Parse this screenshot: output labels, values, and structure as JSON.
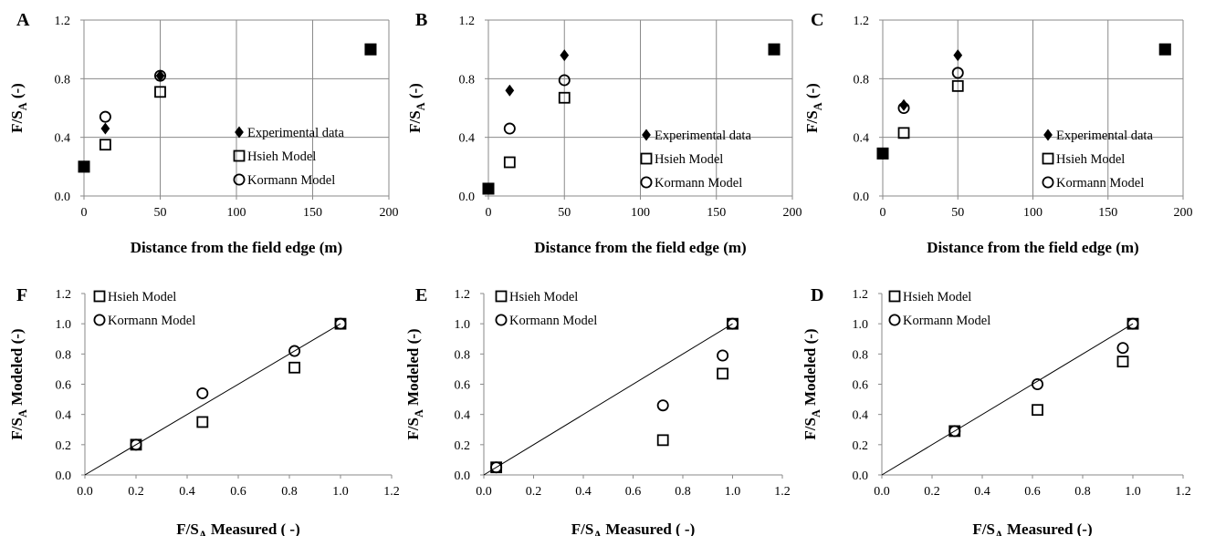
{
  "chart_data": [
    {
      "panel": "A",
      "type": "scatter",
      "xlabel": "Distance from the field edge (m)",
      "ylabel": "F/S_A (-)",
      "xlim": [
        0,
        200
      ],
      "ylim": [
        0,
        1.2
      ],
      "xticks": [
        "0",
        "50",
        "100",
        "150",
        "200"
      ],
      "yticks": [
        "0.0",
        "0.4",
        "0.8",
        "1.2"
      ],
      "grid": "on",
      "legend_position": "bottom-right",
      "series": [
        {
          "name": "Experimental data",
          "marker": "diamond",
          "x": [
            0,
            14,
            50,
            188
          ],
          "y": [
            0.2,
            0.46,
            0.82,
            1.0
          ]
        },
        {
          "name": "Hsieh Model",
          "marker": "square",
          "x": [
            0,
            14,
            50,
            188
          ],
          "y": [
            0.2,
            0.35,
            0.71,
            1.0
          ]
        },
        {
          "name": "Kormann Model",
          "marker": "circle",
          "x": [
            0,
            14,
            50,
            188
          ],
          "y": [
            0.2,
            0.54,
            0.82,
            1.0
          ]
        }
      ]
    },
    {
      "panel": "B",
      "type": "scatter",
      "xlabel": "Distance from the field edge (m)",
      "ylabel": "F/S_A (-)",
      "xlim": [
        0,
        200
      ],
      "ylim": [
        0,
        1.2
      ],
      "xticks": [
        "0",
        "50",
        "100",
        "150",
        "200"
      ],
      "yticks": [
        "0.0",
        "0.4",
        "0.8",
        "1.2"
      ],
      "grid": "on",
      "legend_position": "bottom-right",
      "series": [
        {
          "name": "Experimental data",
          "marker": "diamond",
          "x": [
            0,
            14,
            50,
            188
          ],
          "y": [
            0.05,
            0.72,
            0.96,
            1.0
          ]
        },
        {
          "name": "Hsieh Model",
          "marker": "square",
          "x": [
            0,
            14,
            50,
            188
          ],
          "y": [
            0.05,
            0.23,
            0.67,
            1.0
          ]
        },
        {
          "name": "Kormann Model",
          "marker": "circle",
          "x": [
            0,
            14,
            50,
            188
          ],
          "y": [
            0.05,
            0.46,
            0.79,
            1.0
          ]
        }
      ]
    },
    {
      "panel": "C",
      "type": "scatter",
      "xlabel": "Distance from the field edge (m)",
      "ylabel": "F/S_A (-)",
      "xlim": [
        0,
        200
      ],
      "ylim": [
        0,
        1.2
      ],
      "xticks": [
        "0",
        "50",
        "100",
        "150",
        "200"
      ],
      "yticks": [
        "0.0",
        "0.4",
        "0.8",
        "1.2"
      ],
      "grid": "on",
      "legend_position": "bottom-right",
      "series": [
        {
          "name": "Experimental data",
          "marker": "diamond",
          "x": [
            0,
            14,
            50,
            188
          ],
          "y": [
            0.29,
            0.62,
            0.96,
            1.0
          ]
        },
        {
          "name": "Hsieh Model",
          "marker": "square",
          "x": [
            0,
            14,
            50,
            188
          ],
          "y": [
            0.29,
            0.43,
            0.75,
            1.0
          ]
        },
        {
          "name": "Kormann Model",
          "marker": "circle",
          "x": [
            0,
            14,
            50,
            188
          ],
          "y": [
            0.29,
            0.6,
            0.84,
            1.0
          ]
        }
      ]
    },
    {
      "panel": "F",
      "type": "scatter",
      "xlabel": "F/S_A Measured ( -)",
      "ylabel": "F/S_A Modeled (-)",
      "xlim": [
        0,
        1.2
      ],
      "ylim": [
        0,
        1.2
      ],
      "xticks": [
        "0.0",
        "0.2",
        "0.4",
        "0.6",
        "0.8",
        "1.0",
        "1.2"
      ],
      "yticks": [
        "0.0",
        "0.2",
        "0.4",
        "0.6",
        "0.8",
        "1.0",
        "1.2"
      ],
      "grid": "off",
      "legend_position": "top-left",
      "reference_line": "1:1",
      "series": [
        {
          "name": "Hsieh Model",
          "marker": "square",
          "x": [
            0.2,
            0.46,
            0.82,
            1.0
          ],
          "y": [
            0.2,
            0.35,
            0.71,
            1.0
          ]
        },
        {
          "name": "Kormann Model",
          "marker": "circle",
          "x": [
            0.2,
            0.46,
            0.82,
            1.0
          ],
          "y": [
            0.2,
            0.54,
            0.82,
            1.0
          ]
        }
      ]
    },
    {
      "panel": "E",
      "type": "scatter",
      "xlabel": "F/S_A Measured ( -)",
      "ylabel": "F/S_A Modeled (-)",
      "xlim": [
        0,
        1.2
      ],
      "ylim": [
        0,
        1.2
      ],
      "xticks": [
        "0.0",
        "0.2",
        "0.4",
        "0.6",
        "0.8",
        "1.0",
        "1.2"
      ],
      "yticks": [
        "0.0",
        "0.2",
        "0.4",
        "0.6",
        "0.8",
        "1.0",
        "1.2"
      ],
      "grid": "off",
      "legend_position": "top-left",
      "reference_line": "1:1",
      "series": [
        {
          "name": "Hsieh Model",
          "marker": "square",
          "x": [
            0.05,
            0.72,
            0.96,
            1.0
          ],
          "y": [
            0.05,
            0.23,
            0.67,
            1.0
          ]
        },
        {
          "name": "Kormann Model",
          "marker": "circle",
          "x": [
            0.05,
            0.72,
            0.96,
            1.0
          ],
          "y": [
            0.05,
            0.46,
            0.79,
            1.0
          ]
        }
      ]
    },
    {
      "panel": "D",
      "type": "scatter",
      "xlabel": "F/S_A Measured (-)",
      "ylabel": "F/S_A Modeled (-)",
      "xlim": [
        0,
        1.2
      ],
      "ylim": [
        0,
        1.2
      ],
      "xticks": [
        "0.0",
        "0.2",
        "0.4",
        "0.6",
        "0.8",
        "1.0",
        "1.2"
      ],
      "yticks": [
        "0.0",
        "0.2",
        "0.4",
        "0.6",
        "0.8",
        "1.0",
        "1.2"
      ],
      "grid": "off",
      "legend_position": "top-left",
      "reference_line": "1:1",
      "series": [
        {
          "name": "Hsieh Model",
          "marker": "square",
          "x": [
            0.29,
            0.62,
            0.96,
            1.0
          ],
          "y": [
            0.29,
            0.43,
            0.75,
            1.0
          ]
        },
        {
          "name": "Kormann Model",
          "marker": "circle",
          "x": [
            0.29,
            0.62,
            0.96,
            1.0
          ],
          "y": [
            0.29,
            0.6,
            0.84,
            1.0
          ]
        }
      ]
    }
  ]
}
